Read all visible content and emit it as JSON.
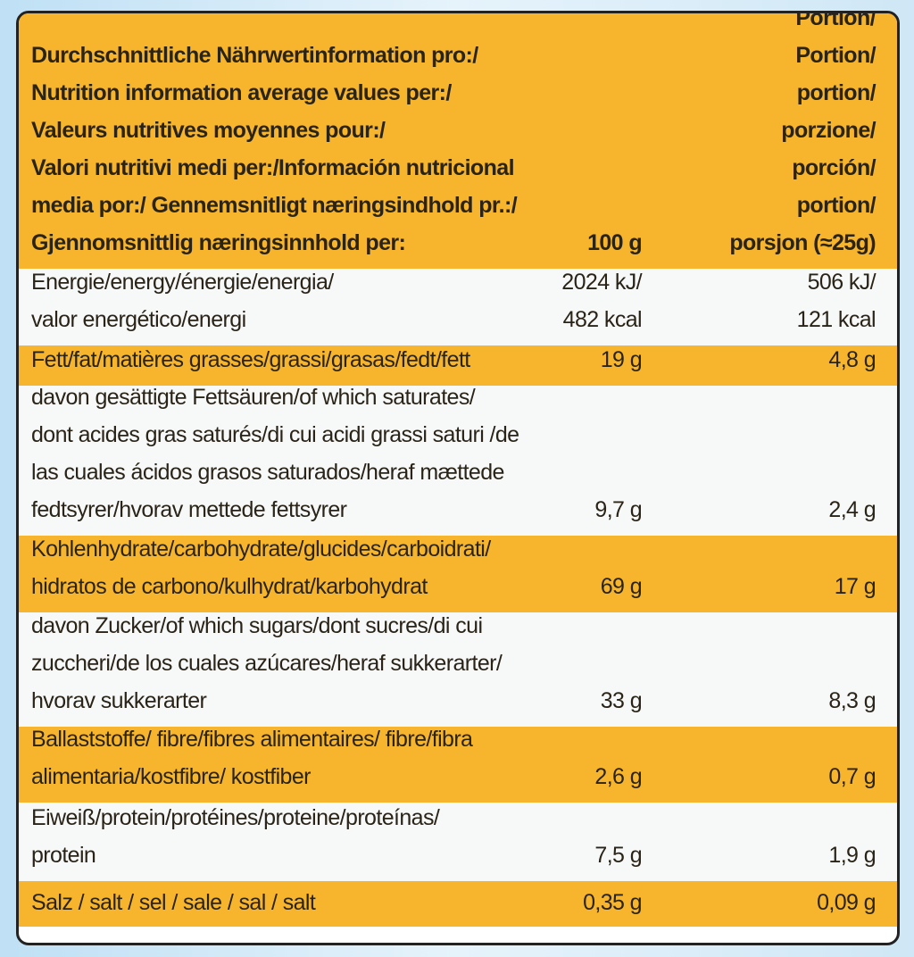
{
  "header": {
    "label": [
      "Durchschnittliche Nährwertinformation pro:/",
      "Nutrition information average values per:/",
      "Valeurs nutritives moyennes pour:/",
      "Valori nutritivi medi per:/Información nutricional",
      "media por:/ Gennemsnitligt næringsindhold pr.:/",
      "Gjennomsnittlig næringsinnhold per:"
    ],
    "per100": [
      "100 g"
    ],
    "portion": [
      "Portion/",
      "Portion/",
      "portion/",
      "porzione/",
      "porción/",
      "portion/",
      "porsjon (≈25g)"
    ]
  },
  "rows": [
    {
      "label": [
        "Energie/energy/énergie/energia/",
        "valor energético/energi"
      ],
      "per100": [
        "2024 kJ/",
        "482 kcal"
      ],
      "portion": [
        "506 kJ/",
        "121 kcal"
      ]
    },
    {
      "label": [
        "Fett/fat/matières grasses/grassi/grasas/fedt/fett"
      ],
      "per100": [
        "19 g"
      ],
      "portion": [
        "4,8 g"
      ]
    },
    {
      "label": [
        "davon gesättigte Fettsäuren/of which saturates/",
        "dont acides gras saturés/di cui acidi grassi saturi /de",
        "las cuales ácidos grasos saturados/heraf mættede",
        "fedtsyrer/hvorav mettede fettsyrer"
      ],
      "per100": [
        "9,7 g"
      ],
      "portion": [
        "2,4 g"
      ]
    },
    {
      "label": [
        "Kohlenhydrate/carbohydrate/glucides/carboidrati/",
        "hidratos de carbono/kulhydrat/karbohydrat"
      ],
      "per100": [
        "69 g"
      ],
      "portion": [
        "17 g"
      ]
    },
    {
      "label": [
        "davon Zucker/of which sugars/dont sucres/di cui",
        "zuccheri/de los cuales azúcares/heraf sukkerarter/",
        "hvorav sukkerarter"
      ],
      "per100": [
        "33 g"
      ],
      "portion": [
        "8,3 g"
      ]
    },
    {
      "label": [
        "Ballaststoffe/ fibre/fibres alimentaires/ fibre/fibra",
        "alimentaria/kostfibre/ kostfiber"
      ],
      "per100": [
        "2,6 g"
      ],
      "portion": [
        "0,7 g"
      ]
    },
    {
      "label": [
        "Eiweiß/protein/protéines/proteine/proteínas/",
        "protein"
      ],
      "per100": [
        "7,5 g"
      ],
      "portion": [
        "1,9 g"
      ]
    },
    {
      "label": [
        "Salz / salt / sel / sale / sal / salt"
      ],
      "per100": [
        "0,35 g"
      ],
      "portion": [
        "0,09 g"
      ]
    }
  ]
}
